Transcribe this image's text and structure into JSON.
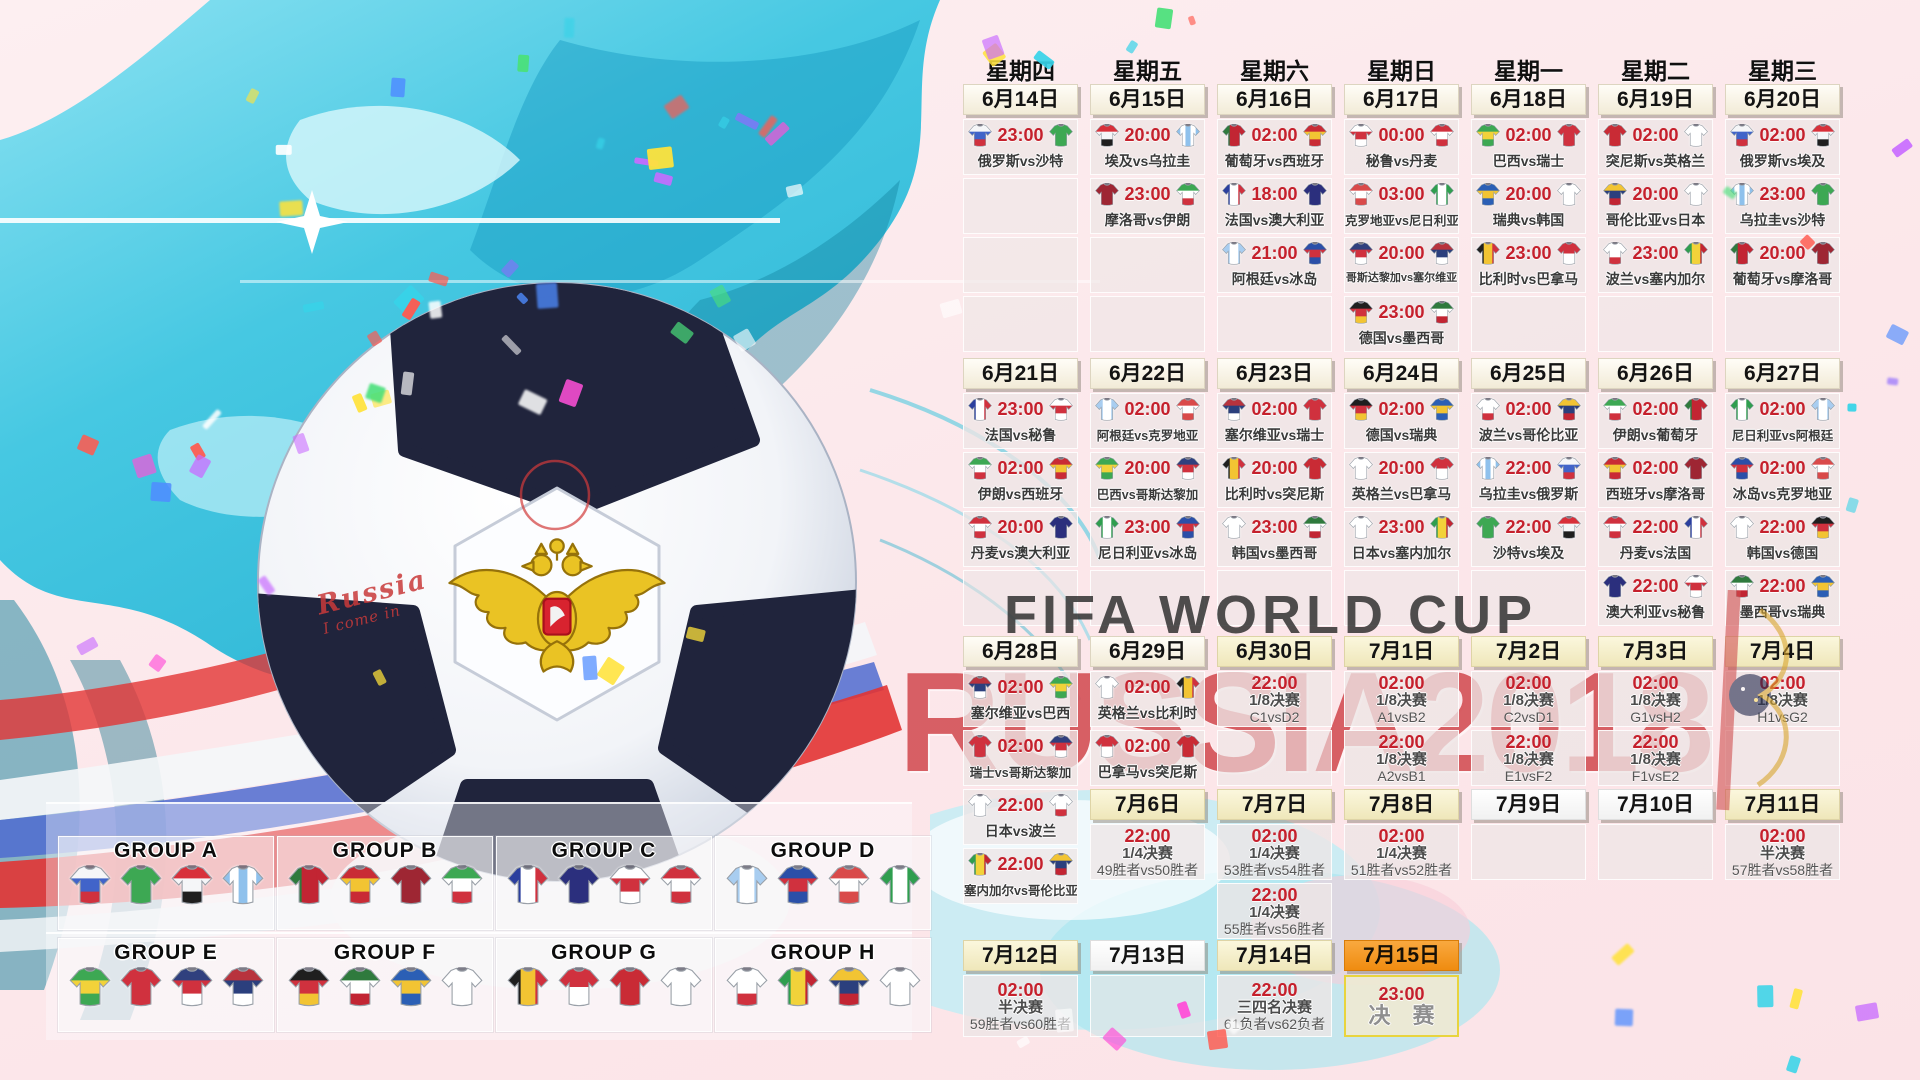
{
  "watermark": {
    "line1": "FIFA WORLD CUP",
    "line2": "RUSSIA2018"
  },
  "ball_note": {
    "line1": "Russia",
    "line2": "I come in"
  },
  "weekdays": [
    "星期四",
    "星期五",
    "星期六",
    "星期日",
    "星期一",
    "星期二",
    "星期三"
  ],
  "weeks": [
    {
      "headers": [
        "6月14日",
        "6月15日",
        "6月16日",
        "6月17日",
        "6月18日",
        "6月19日",
        "6月20日"
      ],
      "header_styles": [
        "cream",
        "cream",
        "cream",
        "cream",
        "cream",
        "cream",
        "cream"
      ],
      "columns": [
        [
          {
            "t": "m",
            "time": "23:00",
            "a": "俄罗斯",
            "b": "沙特"
          },
          {
            "t": "e"
          },
          {
            "t": "e"
          },
          {
            "t": "e"
          }
        ],
        [
          {
            "t": "m",
            "time": "20:00",
            "a": "埃及",
            "b": "乌拉圭"
          },
          {
            "t": "m",
            "time": "23:00",
            "a": "摩洛哥",
            "b": "伊朗"
          },
          {
            "t": "e"
          },
          {
            "t": "e"
          }
        ],
        [
          {
            "t": "m",
            "time": "02:00",
            "a": "葡萄牙",
            "b": "西班牙"
          },
          {
            "t": "m",
            "time": "18:00",
            "a": "法国",
            "b": "澳大利亚"
          },
          {
            "t": "m",
            "time": "21:00",
            "a": "阿根廷",
            "b": "冰岛"
          },
          {
            "t": "e"
          }
        ],
        [
          {
            "t": "m",
            "time": "00:00",
            "a": "秘鲁",
            "b": "丹麦"
          },
          {
            "t": "m",
            "time": "03:00",
            "a": "克罗地亚",
            "b": "尼日利亚"
          },
          {
            "t": "m",
            "time": "20:00",
            "a": "哥斯达黎加",
            "b": "塞尔维亚"
          },
          {
            "t": "m",
            "time": "23:00",
            "a": "德国",
            "b": "墨西哥"
          }
        ],
        [
          {
            "t": "m",
            "time": "02:00",
            "a": "巴西",
            "b": "瑞士"
          },
          {
            "t": "m",
            "time": "20:00",
            "a": "瑞典",
            "b": "韩国"
          },
          {
            "t": "m",
            "time": "23:00",
            "a": "比利时",
            "b": "巴拿马"
          },
          {
            "t": "e"
          }
        ],
        [
          {
            "t": "m",
            "time": "02:00",
            "a": "突尼斯",
            "b": "英格兰"
          },
          {
            "t": "m",
            "time": "20:00",
            "a": "哥伦比亚",
            "b": "日本"
          },
          {
            "t": "m",
            "time": "23:00",
            "a": "波兰",
            "b": "塞内加尔"
          },
          {
            "t": "e"
          }
        ],
        [
          {
            "t": "m",
            "time": "02:00",
            "a": "俄罗斯",
            "b": "埃及"
          },
          {
            "t": "m",
            "time": "23:00",
            "a": "乌拉圭",
            "b": "沙特"
          },
          {
            "t": "m",
            "time": "20:00",
            "a": "葡萄牙",
            "b": "摩洛哥"
          },
          {
            "t": "e"
          }
        ]
      ]
    },
    {
      "headers": [
        "6月21日",
        "6月22日",
        "6月23日",
        "6月24日",
        "6月25日",
        "6月26日",
        "6月27日"
      ],
      "header_styles": [
        "cream",
        "cream",
        "cream",
        "cream",
        "cream",
        "cream",
        "cream"
      ],
      "columns": [
        [
          {
            "t": "m",
            "time": "23:00",
            "a": "法国",
            "b": "秘鲁"
          },
          {
            "t": "m",
            "time": "02:00",
            "a": "伊朗",
            "b": "西班牙"
          },
          {
            "t": "m",
            "time": "20:00",
            "a": "丹麦",
            "b": "澳大利亚"
          },
          {
            "t": "e"
          }
        ],
        [
          {
            "t": "m",
            "time": "02:00",
            "a": "阿根廷",
            "b": "克罗地亚"
          },
          {
            "t": "m",
            "time": "20:00",
            "a": "巴西",
            "b": "哥斯达黎加"
          },
          {
            "t": "m",
            "time": "23:00",
            "a": "尼日利亚",
            "b": "冰岛"
          },
          {
            "t": "e"
          }
        ],
        [
          {
            "t": "m",
            "time": "02:00",
            "a": "塞尔维亚",
            "b": "瑞士"
          },
          {
            "t": "m",
            "time": "20:00",
            "a": "比利时",
            "b": "突尼斯"
          },
          {
            "t": "m",
            "time": "23:00",
            "a": "韩国",
            "b": "墨西哥"
          },
          {
            "t": "e"
          }
        ],
        [
          {
            "t": "m",
            "time": "02:00",
            "a": "德国",
            "b": "瑞典"
          },
          {
            "t": "m",
            "time": "20:00",
            "a": "英格兰",
            "b": "巴拿马"
          },
          {
            "t": "m",
            "time": "23:00",
            "a": "日本",
            "b": "塞内加尔"
          },
          {
            "t": "e"
          }
        ],
        [
          {
            "t": "m",
            "time": "02:00",
            "a": "波兰",
            "b": "哥伦比亚"
          },
          {
            "t": "m",
            "time": "22:00",
            "a": "乌拉圭",
            "b": "俄罗斯"
          },
          {
            "t": "m",
            "time": "22:00",
            "a": "沙特",
            "b": "埃及"
          },
          {
            "t": "e"
          }
        ],
        [
          {
            "t": "m",
            "time": "02:00",
            "a": "伊朗",
            "b": "葡萄牙"
          },
          {
            "t": "m",
            "time": "02:00",
            "a": "西班牙",
            "b": "摩洛哥"
          },
          {
            "t": "m",
            "time": "22:00",
            "a": "丹麦",
            "b": "法国"
          },
          {
            "t": "m",
            "time": "22:00",
            "a": "澳大利亚",
            "b": "秘鲁"
          }
        ],
        [
          {
            "t": "m",
            "time": "02:00",
            "a": "尼日利亚",
            "b": "阿根廷"
          },
          {
            "t": "m",
            "time": "02:00",
            "a": "冰岛",
            "b": "克罗地亚"
          },
          {
            "t": "m",
            "time": "22:00",
            "a": "韩国",
            "b": "德国"
          },
          {
            "t": "m",
            "time": "22:00",
            "a": "墨西哥",
            "b": "瑞典"
          }
        ]
      ]
    },
    {
      "headers": [
        "6月28日",
        "6月29日",
        "6月30日",
        "7月1日",
        "7月2日",
        "7月3日",
        "7月4日"
      ],
      "header_styles": [
        "cream",
        "cream",
        "yellow",
        "yellow",
        "yellow",
        "yellow",
        "yellow"
      ],
      "columns": [
        [
          {
            "t": "m",
            "time": "02:00",
            "a": "塞尔维亚",
            "b": "巴西"
          },
          {
            "t": "m",
            "time": "02:00",
            "a": "瑞士",
            "b": "哥斯达黎加"
          }
        ],
        [
          {
            "t": "m",
            "time": "02:00",
            "a": "英格兰",
            "b": "比利时"
          },
          {
            "t": "m",
            "time": "02:00",
            "a": "巴拿马",
            "b": "突尼斯"
          }
        ],
        [
          {
            "t": "k",
            "time": "22:00",
            "stage": "1/8决赛",
            "pair": "C1vsD2"
          },
          {
            "t": "e"
          }
        ],
        [
          {
            "t": "k",
            "time": "02:00",
            "stage": "1/8决赛",
            "pair": "A1vsB2"
          },
          {
            "t": "k",
            "time": "22:00",
            "stage": "1/8决赛",
            "pair": "A2vsB1"
          }
        ],
        [
          {
            "t": "k",
            "time": "02:00",
            "stage": "1/8决赛",
            "pair": "C2vsD1"
          },
          {
            "t": "k",
            "time": "22:00",
            "stage": "1/8决赛",
            "pair": "E1vsF2"
          }
        ],
        [
          {
            "t": "k",
            "time": "02:00",
            "stage": "1/8决赛",
            "pair": "G1vsH2"
          },
          {
            "t": "k",
            "time": "22:00",
            "stage": "1/8决赛",
            "pair": "F1vsE2"
          }
        ],
        [
          {
            "t": "k",
            "time": "02:00",
            "stage": "1/8决赛",
            "pair": "H1vsG2"
          },
          {
            "t": "e"
          }
        ]
      ]
    },
    {
      "headers": [
        null,
        "7月6日",
        "7月7日",
        "7月8日",
        "7月9日",
        "7月10日",
        "7月11日"
      ],
      "header_styles": [
        null,
        "yellow",
        "yellow",
        "yellow",
        "white",
        "white",
        "yellow"
      ],
      "columns": [
        [
          {
            "t": "m",
            "time": "22:00",
            "a": "日本",
            "b": "波兰"
          },
          {
            "t": "m",
            "time": "22:00",
            "a": "塞内加尔",
            "b": "哥伦比亚"
          }
        ],
        [
          {
            "t": "k",
            "time": "22:00",
            "stage": "1/4决赛",
            "pair": "49胜者vs50胜者"
          }
        ],
        [
          {
            "t": "k",
            "time": "02:00",
            "stage": "1/4决赛",
            "pair": "53胜者vs54胜者"
          },
          {
            "t": "k",
            "time": "22:00",
            "stage": "1/4决赛",
            "pair": "55胜者vs56胜者"
          }
        ],
        [
          {
            "t": "k",
            "time": "02:00",
            "stage": "1/4决赛",
            "pair": "51胜者vs52胜者"
          }
        ],
        [
          {
            "t": "e"
          }
        ],
        [
          {
            "t": "e"
          }
        ],
        [
          {
            "t": "k",
            "time": "02:00",
            "stage": "半决赛",
            "pair": "57胜者vs58胜者"
          }
        ]
      ]
    },
    {
      "headers": [
        "7月12日",
        "7月13日",
        "7月14日",
        "7月15日",
        null,
        null,
        null
      ],
      "header_styles": [
        "yellow",
        "white",
        "yellow",
        "orange",
        null,
        null,
        null
      ],
      "columns": [
        [
          {
            "t": "k",
            "time": "02:00",
            "stage": "半决赛",
            "pair": "59胜者vs60胜者"
          }
        ],
        [
          {
            "t": "e"
          }
        ],
        [
          {
            "t": "k",
            "time": "22:00",
            "stage": "三四名决赛",
            "pair": "61负者vs62负者"
          }
        ],
        [
          {
            "t": "f",
            "time": "23:00",
            "label": "决 赛"
          }
        ],
        [],
        [],
        []
      ]
    }
  ],
  "groups": [
    {
      "name": "GROUP A",
      "teams": [
        "俄罗斯",
        "沙特",
        "埃及",
        "乌拉圭"
      ]
    },
    {
      "name": "GROUP B",
      "teams": [
        "葡萄牙",
        "西班牙",
        "摩洛哥",
        "伊朗"
      ]
    },
    {
      "name": "GROUP C",
      "teams": [
        "法国",
        "澳大利亚",
        "秘鲁",
        "丹麦"
      ]
    },
    {
      "name": "GROUP D",
      "teams": [
        "阿根廷",
        "冰岛",
        "克罗地亚",
        "尼日利亚"
      ]
    },
    {
      "name": "GROUP E",
      "teams": [
        "巴西",
        "瑞士",
        "哥斯达黎加",
        "塞尔维亚"
      ]
    },
    {
      "name": "GROUP F",
      "teams": [
        "德国",
        "墨西哥",
        "瑞典",
        "韩国"
      ]
    },
    {
      "name": "GROUP G",
      "teams": [
        "比利时",
        "巴拿马",
        "突尼斯",
        "英格兰"
      ]
    },
    {
      "name": "GROUP H",
      "teams": [
        "波兰",
        "塞内加尔",
        "哥伦比亚",
        "日本"
      ]
    }
  ],
  "kits": {
    "俄罗斯": {
      "d": "h",
      "s": [
        "#f5f6f8",
        "#4164c9",
        "#d0313e"
      ]
    },
    "沙特": {
      "d": "h",
      "s": [
        "#3da853"
      ]
    },
    "埃及": {
      "d": "h",
      "s": [
        "#d8303a",
        "#f5f6f8",
        "#1f1f1f"
      ]
    },
    "乌拉圭": {
      "d": "v",
      "s": [
        "#8fc1ec",
        "#ffffff",
        "#8fc1ec",
        "#ffffff",
        "#8fc1ec"
      ]
    },
    "葡萄牙": {
      "d": "v",
      "s": [
        "#2f7a3d",
        "#c22533",
        "#c22533"
      ]
    },
    "西班牙": {
      "d": "h",
      "s": [
        "#c92b35",
        "#f2c433",
        "#c92b35"
      ]
    },
    "摩洛哥": {
      "d": "h",
      "s": [
        "#9e2633"
      ]
    },
    "伊朗": {
      "d": "h",
      "s": [
        "#3da853",
        "#ffffff",
        "#d0313e"
      ]
    },
    "法国": {
      "d": "v",
      "s": [
        "#2b3f9e",
        "#ffffff",
        "#d0313e"
      ]
    },
    "澳大利亚": {
      "d": "h",
      "s": [
        "#2b2f7d"
      ]
    },
    "秘鲁": {
      "d": "h",
      "s": [
        "#ffffff",
        "#d0313e",
        "#ffffff"
      ]
    },
    "丹麦": {
      "d": "h",
      "s": [
        "#d0313e",
        "#ffffff",
        "#d0313e"
      ]
    },
    "克罗地亚": {
      "d": "h",
      "s": [
        "#d94a4a",
        "#ffffff",
        "#d94a4a"
      ]
    },
    "尼日利亚": {
      "d": "v",
      "s": [
        "#2f9e4f",
        "#ffffff",
        "#2f9e4f"
      ]
    },
    "阿根廷": {
      "d": "v",
      "s": [
        "#a8cdf0",
        "#ffffff",
        "#a8cdf0"
      ]
    },
    "冰岛": {
      "d": "h",
      "s": [
        "#2b4fa8",
        "#d0313e",
        "#2b4fa8"
      ]
    },
    "哥斯达黎加": {
      "d": "h",
      "s": [
        "#30407e",
        "#d0313e",
        "#ffffff"
      ]
    },
    "塞尔维亚": {
      "d": "h",
      "s": [
        "#b8333d",
        "#2b3f7d",
        "#ffffff"
      ]
    },
    "德国": {
      "d": "h",
      "s": [
        "#1f1f1f",
        "#d0313e",
        "#f2c433"
      ]
    },
    "墨西哥": {
      "d": "h",
      "s": [
        "#2f7a3d",
        "#ffffff",
        "#c22533"
      ]
    },
    "巴西": {
      "d": "h",
      "s": [
        "#3da853",
        "#f2d23a",
        "#3da853"
      ]
    },
    "瑞士": {
      "d": "h",
      "s": [
        "#d0313e"
      ]
    },
    "瑞典": {
      "d": "h",
      "s": [
        "#2b5fb5",
        "#f2c433",
        "#2b5fb5"
      ]
    },
    "韩国": {
      "d": "h",
      "s": [
        "#ffffff"
      ]
    },
    "比利时": {
      "d": "v",
      "s": [
        "#1f1f1f",
        "#f2c433",
        "#d0313e"
      ]
    },
    "巴拿马": {
      "d": "h",
      "s": [
        "#d0313e",
        "#ffffff"
      ]
    },
    "突尼斯": {
      "d": "h",
      "s": [
        "#c92b35"
      ]
    },
    "英格兰": {
      "d": "h",
      "s": [
        "#ffffff"
      ]
    },
    "哥伦比亚": {
      "d": "h",
      "s": [
        "#f2c433",
        "#2b3f7d",
        "#c22533"
      ]
    },
    "日本": {
      "d": "h",
      "s": [
        "#ffffff"
      ]
    },
    "波兰": {
      "d": "h",
      "s": [
        "#ffffff",
        "#ffffff",
        "#d0313e"
      ]
    },
    "塞内加尔": {
      "d": "v",
      "s": [
        "#2f9e4f",
        "#f2d23a",
        "#c22533"
      ]
    }
  },
  "colors": {
    "time_red": "#c5202c",
    "header_orange": "#f59a1f",
    "watermark_red": "#ce3e44",
    "watermark_dark": "#2a2a2a"
  }
}
